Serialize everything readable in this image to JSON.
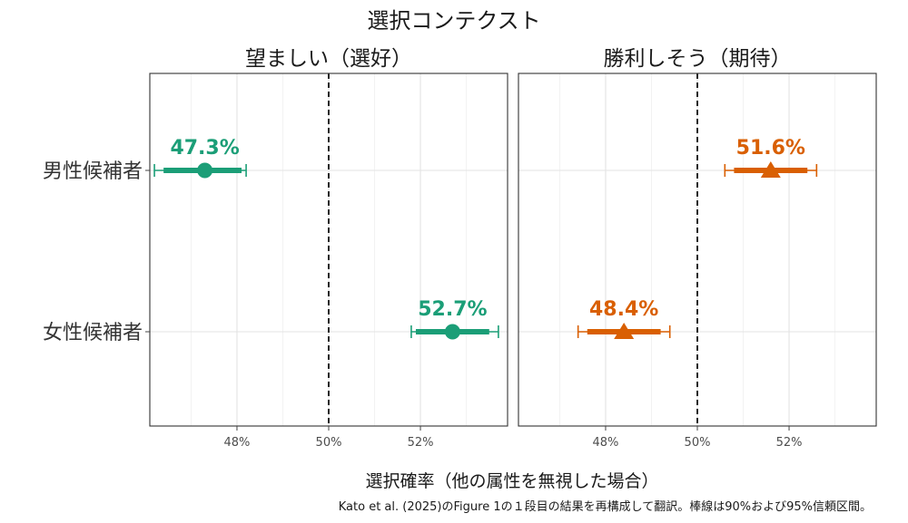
{
  "chart_data": {
    "type": "forest-plot",
    "title": "選択コンテクスト",
    "xlabel": "選択確率（他の属性を無視した場合）",
    "caption": "Kato et al. (2025)のFigure 1の１段目の結果を再構成して翻訳。棒線は90%および95%信頼区間。",
    "categories": [
      "男性候補者",
      "女性候補者"
    ],
    "xlim": [
      46.1,
      53.9
    ],
    "xticks": [
      48,
      50,
      52
    ],
    "xtick_labels": [
      "48%",
      "50%",
      "52%"
    ],
    "reference_line": 50,
    "panels": [
      {
        "title": "望ましい（選好）",
        "color": "#1b9e77",
        "marker": "circle",
        "points": [
          {
            "category": "男性候補者",
            "value": 47.3,
            "label": "47.3%",
            "ci90": [
              46.4,
              48.1
            ],
            "ci95": [
              46.2,
              48.2
            ]
          },
          {
            "category": "女性候補者",
            "value": 52.7,
            "label": "52.7%",
            "ci90": [
              51.9,
              53.5
            ],
            "ci95": [
              51.8,
              53.7
            ]
          }
        ]
      },
      {
        "title": "勝利しそう（期待）",
        "color": "#d95f02",
        "marker": "triangle",
        "points": [
          {
            "category": "男性候補者",
            "value": 51.6,
            "label": "51.6%",
            "ci90": [
              50.8,
              52.4
            ],
            "ci95": [
              50.6,
              52.6
            ]
          },
          {
            "category": "女性候補者",
            "value": 48.4,
            "label": "48.4%",
            "ci90": [
              47.6,
              49.2
            ],
            "ci95": [
              47.4,
              49.4
            ]
          }
        ]
      }
    ]
  }
}
